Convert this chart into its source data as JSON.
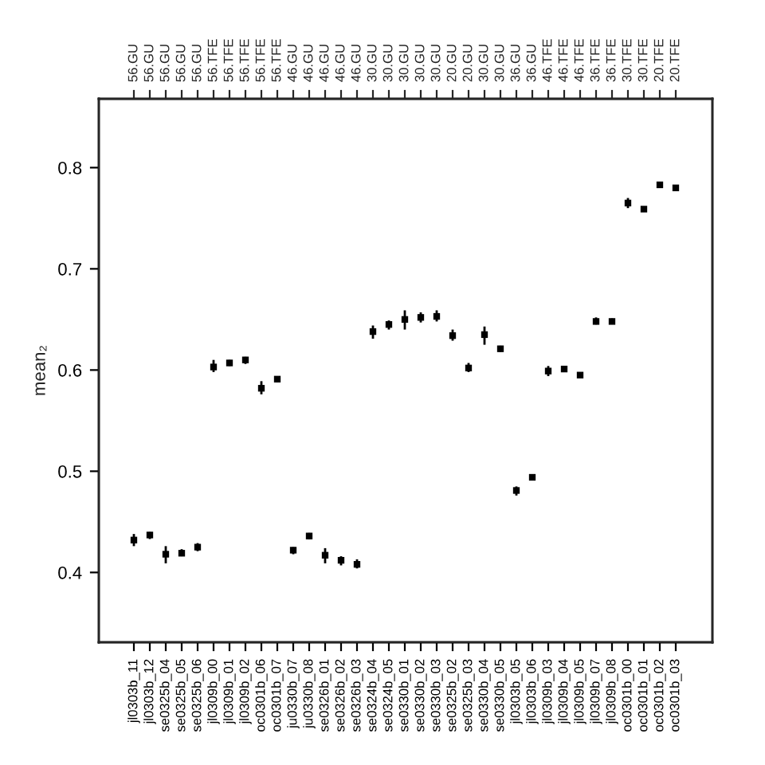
{
  "chart_data": {
    "type": "scatter",
    "ylabel": "mean₂",
    "categories": [
      "jl0303b_11",
      "jl0303b_12",
      "se0325b_04",
      "se0325b_05",
      "se0325b_06",
      "jl0309b_00",
      "jl0309b_01",
      "jl0309b_02",
      "oc0301b_06",
      "oc0301b_07",
      "ju0330b_07",
      "ju0330b_08",
      "se0326b_01",
      "se0326b_02",
      "se0326b_03",
      "se0324b_04",
      "se0324b_05",
      "se0330b_01",
      "se0330b_02",
      "se0330b_03",
      "se0325b_02",
      "se0325b_03",
      "se0330b_04",
      "se0330b_05",
      "jl0303b_05",
      "jl0303b_06",
      "jl0309b_03",
      "jl0309b_04",
      "jl0309b_05",
      "jl0309b_07",
      "jl0309b_08",
      "oc0301b_00",
      "oc0301b_01",
      "oc0301b_02",
      "oc0301b_03"
    ],
    "annotations": [
      {
        "text": "56.GU",
        "x": "jl0303b_11"
      },
      {
        "text": "56.GU",
        "x": "jl0303b_12"
      },
      {
        "text": "56.GU",
        "x": "se0325b_04"
      },
      {
        "text": "56.GU",
        "x": "se0325b_05"
      },
      {
        "text": "56.GU",
        "x": "se0325b_06"
      },
      {
        "text": "56.TFE",
        "x": "jl0309b_00"
      },
      {
        "text": "56.TFE",
        "x": "jl0309b_01"
      },
      {
        "text": "56.TFE",
        "x": "jl0309b_02"
      },
      {
        "text": "56.TFE",
        "x": "oc0301b_06"
      },
      {
        "text": "56.TFE",
        "x": "oc0301b_07"
      },
      {
        "text": "46.GU",
        "x": "ju0330b_07"
      },
      {
        "text": "46.GU",
        "x": "ju0330b_08"
      },
      {
        "text": "46.GU",
        "x": "se0326b_01"
      },
      {
        "text": "46.GU",
        "x": "se0326b_02"
      },
      {
        "text": "46.GU",
        "x": "se0326b_03"
      },
      {
        "text": "30.GU",
        "x": "se0324b_04"
      },
      {
        "text": "30.GU",
        "x": "se0324b_05"
      },
      {
        "text": "30.GU",
        "x": "se0330b_01"
      },
      {
        "text": "30.GU",
        "x": "se0330b_02"
      },
      {
        "text": "30.GU",
        "x": "se0330b_03"
      },
      {
        "text": "20.GU",
        "x": "se0325b_02"
      },
      {
        "text": "20.GU",
        "x": "se0325b_03"
      },
      {
        "text": "30.GU",
        "x": "se0330b_04"
      },
      {
        "text": "30.GU",
        "x": "se0330b_05"
      },
      {
        "text": "36.GU",
        "x": "jl0303b_05"
      },
      {
        "text": "36.GU",
        "x": "jl0303b_06"
      },
      {
        "text": "46.TFE",
        "x": "jl0309b_03"
      },
      {
        "text": "46.TFE",
        "x": "jl0309b_04"
      },
      {
        "text": "46.TFE",
        "x": "jl0309b_05"
      },
      {
        "text": "36.TFE",
        "x": "jl0309b_07"
      },
      {
        "text": "36.TFE",
        "x": "jl0309b_08"
      },
      {
        "text": "30.TFE",
        "x": "oc0301b_00"
      },
      {
        "text": "30.TFE",
        "x": "oc0301b_01"
      },
      {
        "text": "20.TFE",
        "x": "oc0301b_02"
      },
      {
        "text": "20.TFE",
        "x": "oc0301b_03"
      }
    ],
    "series": [
      {
        "color": "#000000",
        "values": [
          0.432,
          0.437,
          0.418,
          0.419,
          0.425,
          0.603,
          0.607,
          0.61,
          0.582,
          0.591,
          0.422,
          0.436,
          0.417,
          0.412,
          0.408,
          0.638,
          0.645,
          0.65,
          0.652,
          0.653,
          0.634,
          0.602,
          0.635,
          0.621,
          0.481,
          0.494,
          0.599,
          0.601,
          0.595,
          0.648,
          0.648,
          0.765,
          0.759,
          0.783,
          0.78
        ],
        "errors": [
          [
            0.426,
            0.438
          ],
          [
            0.433,
            0.44
          ],
          [
            0.409,
            0.426
          ],
          [
            0.416,
            0.423
          ],
          [
            0.421,
            0.429
          ],
          [
            0.598,
            0.61
          ],
          [
            0.604,
            0.61
          ],
          [
            0.606,
            0.613
          ],
          [
            0.576,
            0.589
          ],
          [
            0.588,
            0.594
          ],
          [
            0.418,
            0.425
          ],
          [
            0.433,
            0.439
          ],
          [
            0.409,
            0.424
          ],
          [
            0.407,
            0.416
          ],
          [
            0.404,
            0.413
          ],
          [
            0.631,
            0.644
          ],
          [
            0.64,
            0.649
          ],
          [
            0.64,
            0.659
          ],
          [
            0.647,
            0.657
          ],
          [
            0.648,
            0.659
          ],
          [
            0.629,
            0.64
          ],
          [
            0.598,
            0.607
          ],
          [
            0.625,
            0.643
          ],
          [
            0.618,
            0.624
          ],
          [
            0.476,
            0.485
          ],
          [
            0.492,
            0.496
          ],
          [
            0.594,
            0.604
          ],
          [
            0.598,
            0.603
          ],
          [
            0.593,
            0.597
          ],
          [
            0.645,
            0.652
          ],
          [
            0.646,
            0.651
          ],
          [
            0.76,
            0.77
          ],
          [
            0.757,
            0.761
          ],
          [
            0.78,
            0.786
          ],
          [
            0.778,
            0.781
          ]
        ]
      }
    ],
    "ylim": [
      0.331,
      0.868
    ],
    "yticks": [
      0.4,
      0.5,
      0.6,
      0.7,
      0.8
    ],
    "marker": "square",
    "grid": false,
    "legend": false
  }
}
